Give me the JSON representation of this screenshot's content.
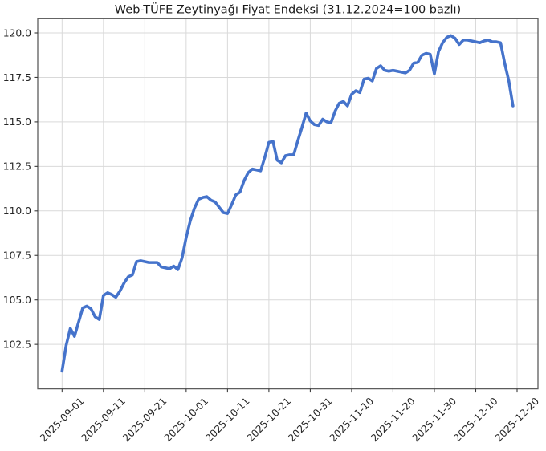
{
  "chart_data": {
    "type": "line",
    "title": "Web-TÜFE Zeytinyağı Fiyat Endeksi (31.12.2024=100 bazlı)",
    "xlabel": "",
    "ylabel": "",
    "grid": true,
    "legend_position": "none",
    "x_start_date": "2025-09-01",
    "x_interval_days": 1,
    "x_tick_day_offsets": [
      0,
      10,
      20,
      30,
      40,
      50,
      60,
      70,
      80,
      90,
      100,
      110
    ],
    "x_tick_labels": [
      "2025-09-01",
      "2025-09-11",
      "2025-09-21",
      "2025-10-01",
      "2025-10-11",
      "2025-10-21",
      "2025-10-31",
      "2025-11-10",
      "2025-11-20",
      "2025-11-30",
      "2025-12-10",
      "2025-12-20"
    ],
    "y_ticks": [
      102.5,
      105.0,
      107.5,
      110.0,
      112.5,
      115.0,
      117.5,
      120.0
    ],
    "y_tick_labels": [
      "102.5",
      "105.0",
      "107.5",
      "110.0",
      "112.5",
      "115.0",
      "117.5",
      "120.0"
    ],
    "ylim": [
      100.0,
      120.8
    ],
    "xlim_day_offsets": [
      -5.9,
      115.0
    ],
    "series": [
      {
        "values": [
          101.0,
          102.45,
          103.4,
          102.95,
          103.75,
          104.55,
          104.65,
          104.5,
          104.05,
          103.9,
          105.25,
          105.4,
          105.3,
          105.15,
          105.5,
          105.95,
          106.3,
          106.4,
          107.15,
          107.2,
          107.15,
          107.1,
          107.1,
          107.1,
          106.85,
          106.8,
          106.75,
          106.9,
          106.7,
          107.35,
          108.5,
          109.45,
          110.15,
          110.65,
          110.75,
          110.8,
          110.6,
          110.5,
          110.2,
          109.9,
          109.85,
          110.35,
          110.9,
          111.05,
          111.7,
          112.15,
          112.35,
          112.3,
          112.25,
          113.0,
          113.85,
          113.9,
          112.85,
          112.7,
          113.1,
          113.15,
          113.15,
          113.95,
          114.7,
          115.5,
          115.05,
          114.85,
          114.8,
          115.15,
          115.0,
          114.95,
          115.6,
          116.05,
          116.15,
          115.9,
          116.55,
          116.75,
          116.65,
          117.4,
          117.45,
          117.3,
          118.0,
          118.15,
          117.9,
          117.85,
          117.9,
          117.85,
          117.8,
          117.75,
          117.9,
          118.3,
          118.35,
          118.75,
          118.85,
          118.8,
          117.7,
          118.95,
          119.45,
          119.75,
          119.85,
          119.7,
          119.35,
          119.6,
          119.6,
          119.55,
          119.5,
          119.45,
          119.55,
          119.6,
          119.5,
          119.5,
          119.45,
          118.3,
          117.3,
          115.9
        ]
      }
    ],
    "colors": {
      "line": "#4573cb",
      "grid": "#d9d9d9",
      "spine": "#5c5c5c",
      "tick": "#3a3a3a",
      "tick_label": "#262626",
      "title": "#1a1a1a",
      "background": "#ffffff"
    }
  }
}
